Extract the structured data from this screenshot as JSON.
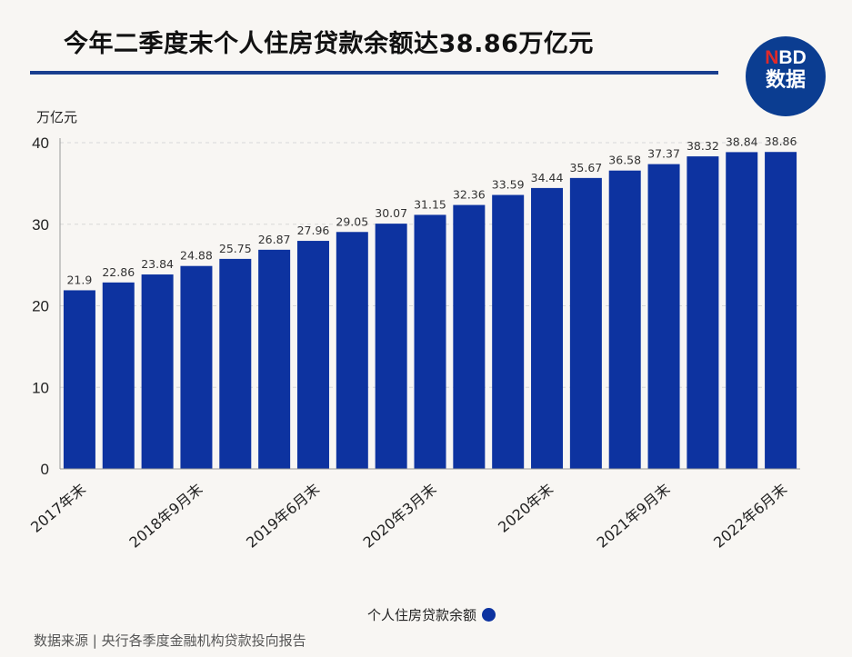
{
  "header": {
    "title": "今年二季度末个人住房贷款余额达38.86万亿元",
    "logo_text": "NBD 数据"
  },
  "footer": {
    "source": "数据来源 | 央行各季度金融机构贷款投向报告"
  },
  "colors": {
    "bar": "#0d33a0",
    "title_rule": "#1a3f8f",
    "logo_bg": "#0b3d91"
  },
  "chart_data": {
    "type": "bar",
    "ylabel": "万亿元",
    "ylim": [
      0,
      40
    ],
    "yticks": [
      0,
      10,
      20,
      30,
      40
    ],
    "grid": true,
    "legend_position": "bottom",
    "tick_labels": [
      "2017年末",
      "",
      "",
      "2018年9月末",
      "",
      "",
      "2019年6月末",
      "",
      "",
      "2020年3月末",
      "",
      "",
      "2020年末",
      "",
      "",
      "2021年9月末",
      "",
      "",
      "2022年6月末"
    ],
    "series": [
      {
        "name": "个人住房贷款余额",
        "values": [
          21.9,
          22.86,
          23.84,
          24.88,
          25.75,
          26.87,
          27.96,
          29.05,
          30.07,
          31.15,
          32.36,
          33.59,
          34.44,
          35.67,
          36.58,
          37.37,
          38.32,
          38.84,
          38.86
        ]
      }
    ]
  }
}
